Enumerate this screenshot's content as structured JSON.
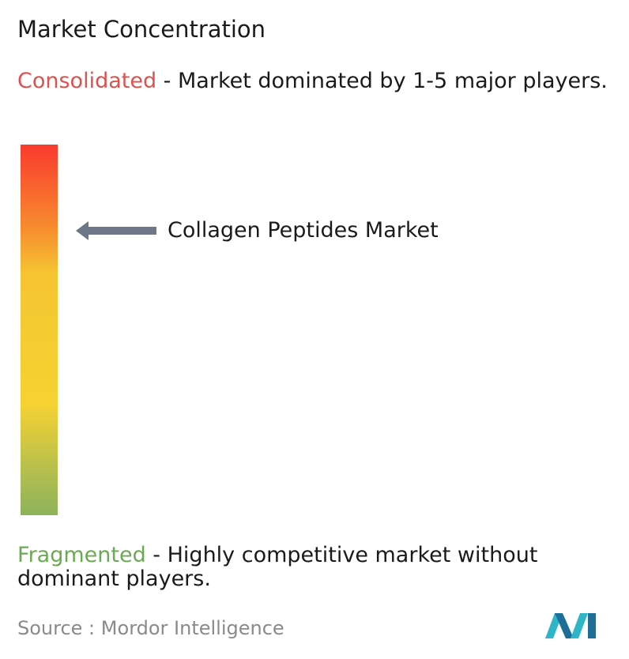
{
  "header": {
    "title": "Market Concentration"
  },
  "consolidated": {
    "label": "Consolidated",
    "description": " - Market dominated by 1-5 major players."
  },
  "marker": {
    "label": "Collagen Peptides Market"
  },
  "fragmented": {
    "label": "Fragmented",
    "description": " - Highly competitive market without dominant players."
  },
  "footer": {
    "source_label": "Source :",
    "source": "Mordor Intelligence"
  }
}
